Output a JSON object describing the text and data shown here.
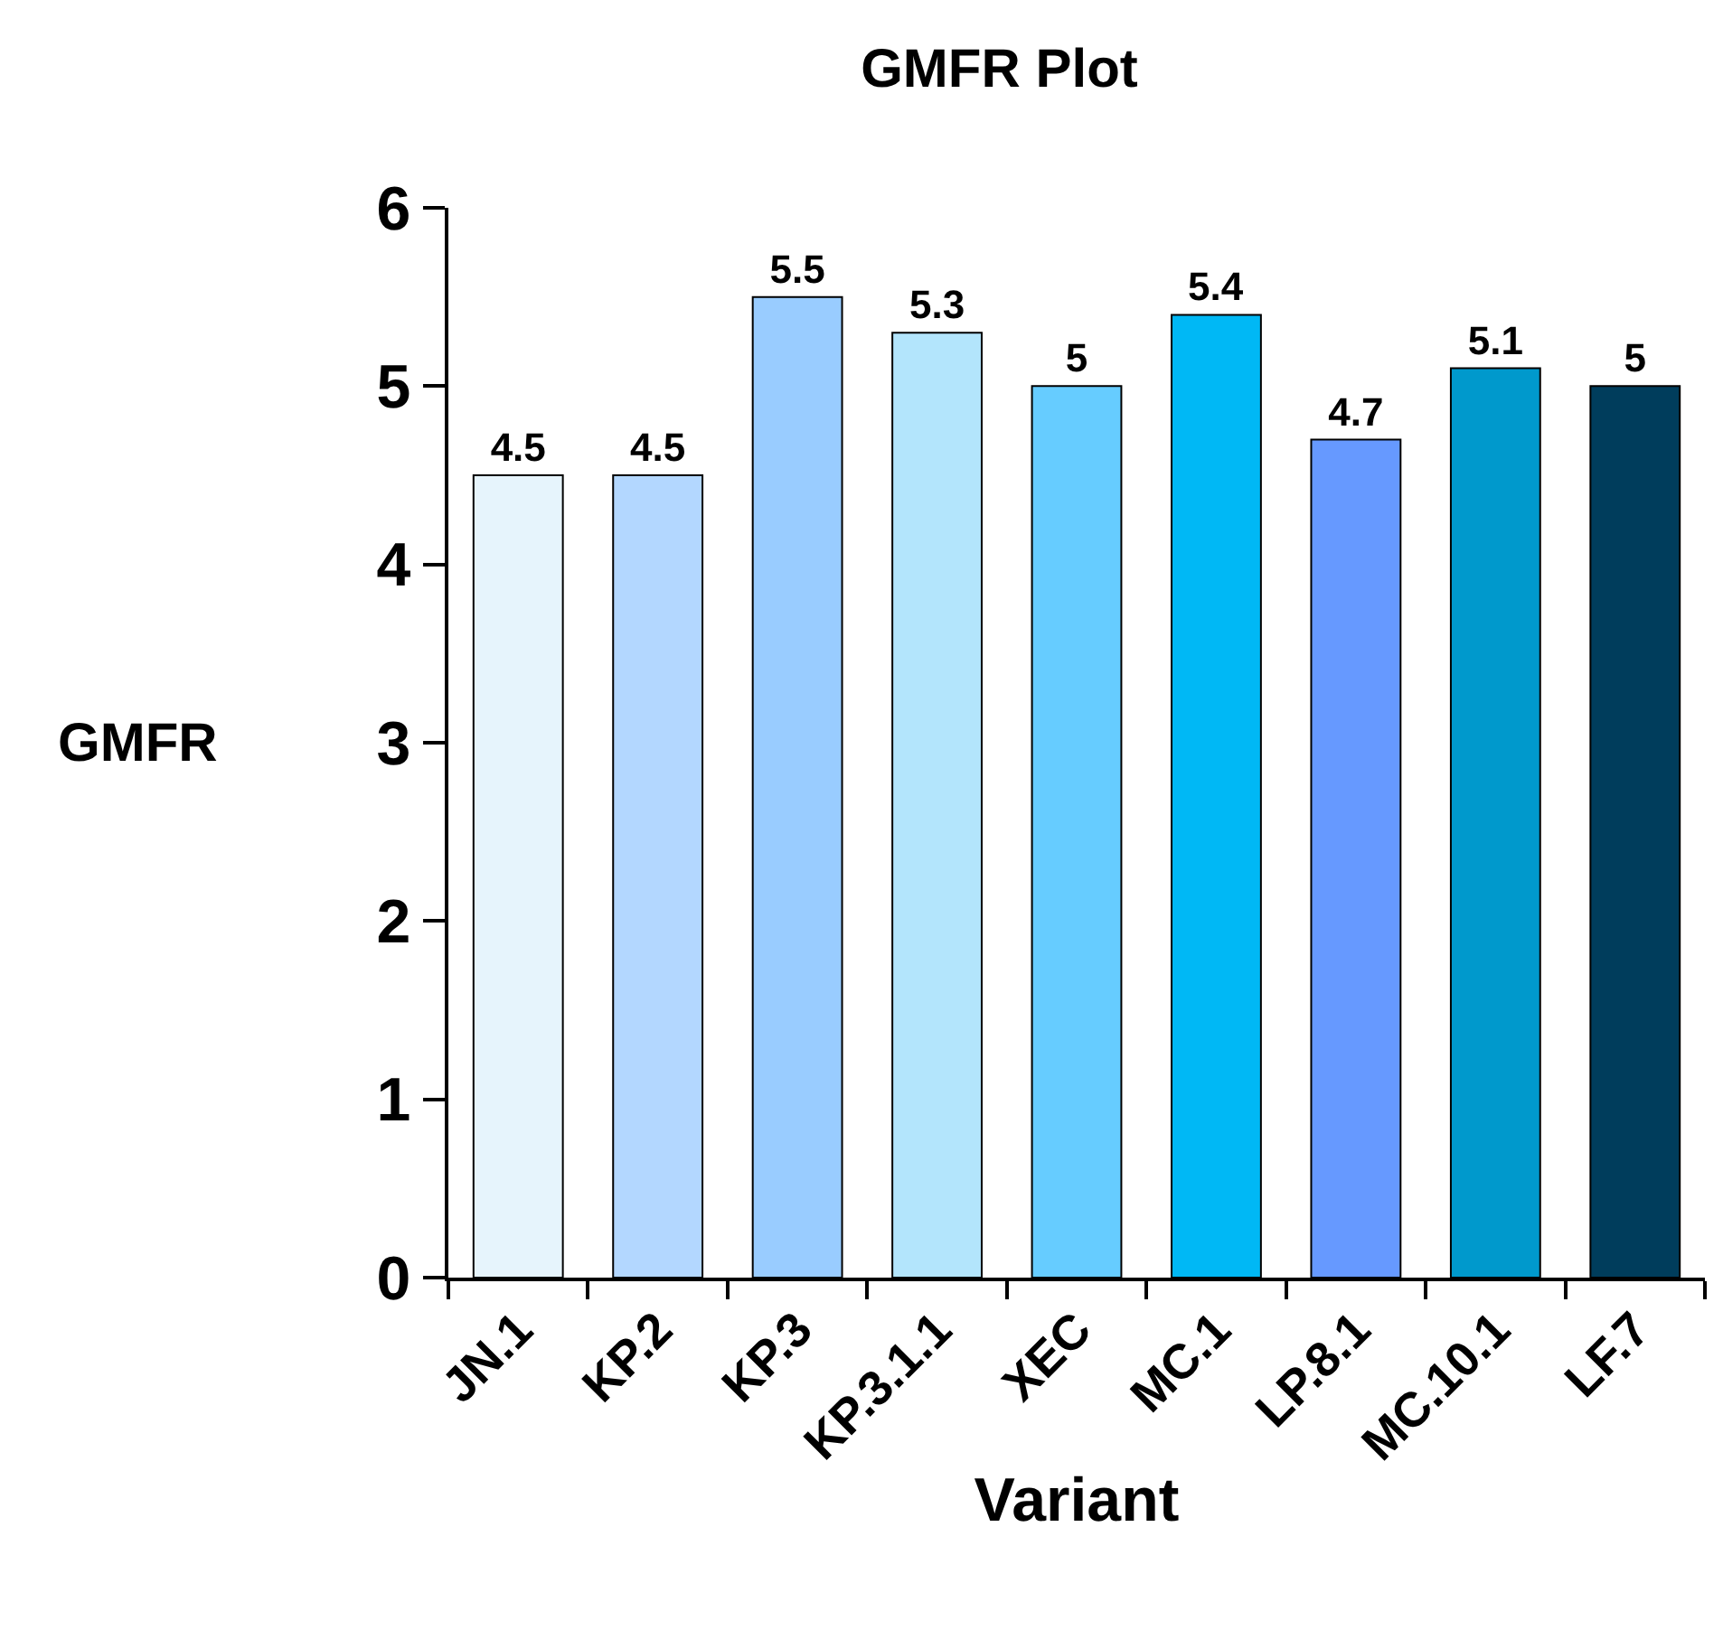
{
  "chart_data": {
    "type": "bar",
    "title": "GMFR Plot",
    "xlabel": "Variant",
    "ylabel": "GMFR",
    "categories": [
      "JN.1",
      "KP.2",
      "KP.3",
      "KP.3.1.1",
      "XEC",
      "MC.1",
      "LP.8.1",
      "MC.10.1",
      "LF.7"
    ],
    "values": [
      4.5,
      4.5,
      5.5,
      5.3,
      5,
      5.4,
      4.7,
      5.1,
      5
    ],
    "colors": [
      "#e6f4fc",
      "#b3d7ff",
      "#99ccff",
      "#b3e5fc",
      "#66ccff",
      "#00b8f5",
      "#6699ff",
      "#0099cc",
      "#003d5c"
    ],
    "ylim": [
      0,
      6
    ],
    "yticks": [
      0,
      1,
      2,
      3,
      4,
      5,
      6
    ],
    "data_labels": true,
    "grid": false
  }
}
